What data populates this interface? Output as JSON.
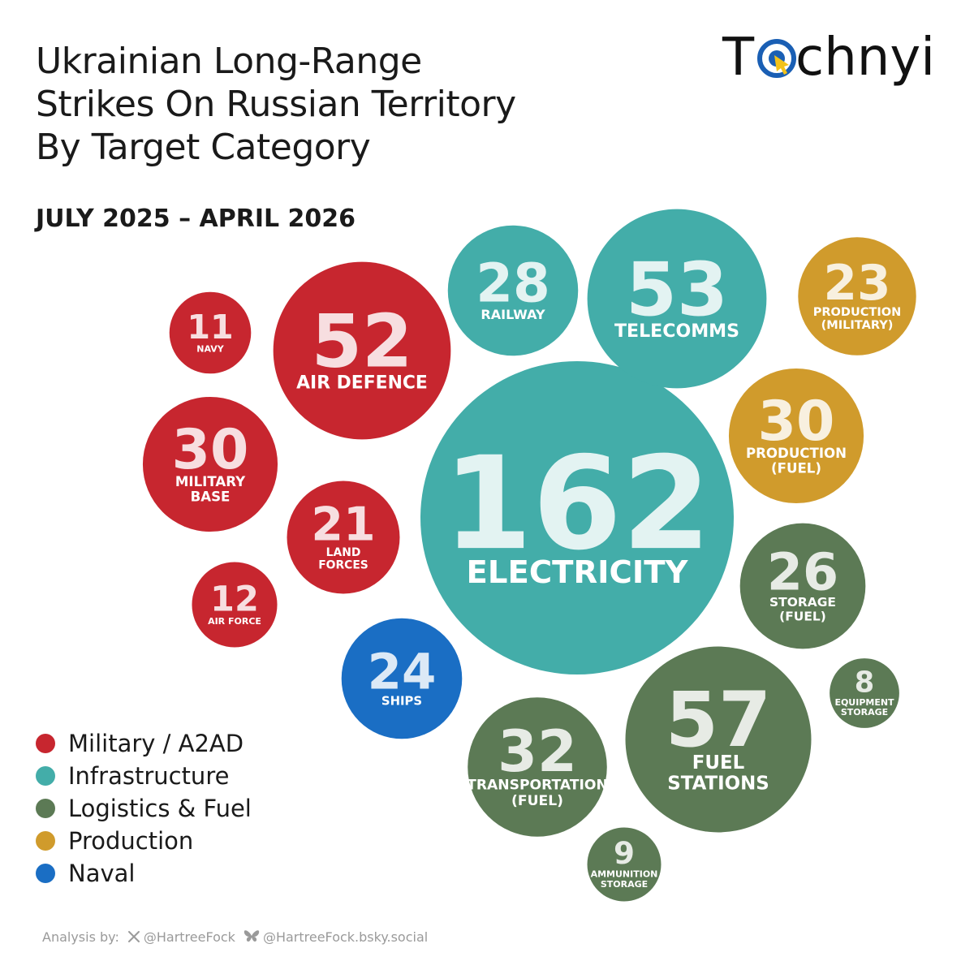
{
  "title_lines": [
    "Ukrainian Long-Range",
    "Strikes On Russian Territory",
    "By Target Category"
  ],
  "subtitle": "JULY 2025 – APRIL 2026",
  "logo": {
    "text": "Technyi",
    "icon": "target-e-logo-icon"
  },
  "chart_data": {
    "type": "bubble",
    "title": "Ukrainian Long-Range Strikes On Russian Territory By Target Category",
    "subtitle": "JULY 2025 – APRIL 2026",
    "series": [
      {
        "name": "Military / A2AD",
        "color": "#c7262f"
      },
      {
        "name": "Infrastructure",
        "color": "#43ada9"
      },
      {
        "name": "Logistics & Fuel",
        "color": "#5c7a55"
      },
      {
        "name": "Production",
        "color": "#d09b2c"
      },
      {
        "name": "Naval",
        "color": "#1a6ec4"
      }
    ],
    "points": [
      {
        "value": 162,
        "label": [
          "ELECTRICITY"
        ],
        "series": "Infrastructure"
      },
      {
        "value": 53,
        "label": [
          "TELECOMMS"
        ],
        "series": "Infrastructure"
      },
      {
        "value": 28,
        "label": [
          "RAILWAY"
        ],
        "series": "Infrastructure"
      },
      {
        "value": 23,
        "label": [
          "PRODUCTION",
          "(MILITARY)"
        ],
        "series": "Production"
      },
      {
        "value": 30,
        "label": [
          "PRODUCTION",
          "(FUEL)"
        ],
        "series": "Production"
      },
      {
        "value": 11,
        "label": [
          "NAVY"
        ],
        "series": "Military / A2AD"
      },
      {
        "value": 52,
        "label": [
          "AIR DEFENCE"
        ],
        "series": "Military / A2AD"
      },
      {
        "value": 30,
        "label": [
          "MILITARY",
          "BASE"
        ],
        "series": "Military / A2AD"
      },
      {
        "value": 21,
        "label": [
          "LAND",
          "FORCES"
        ],
        "series": "Military / A2AD"
      },
      {
        "value": 12,
        "label": [
          "AIR FORCE"
        ],
        "series": "Military / A2AD"
      },
      {
        "value": 24,
        "label": [
          "SHIPS"
        ],
        "series": "Naval"
      },
      {
        "value": 26,
        "label": [
          "STORAGE",
          "(FUEL)"
        ],
        "series": "Logistics & Fuel"
      },
      {
        "value": 8,
        "label": [
          "EQUIPMENT",
          "STORAGE"
        ],
        "series": "Logistics & Fuel"
      },
      {
        "value": 57,
        "label": [
          "FUEL",
          "STATIONS"
        ],
        "series": "Logistics & Fuel"
      },
      {
        "value": 32,
        "label": [
          "TRANSPORTATION",
          "(FUEL)"
        ],
        "series": "Logistics & Fuel"
      },
      {
        "value": 9,
        "label": [
          "AMMUNITION",
          "STORAGE"
        ],
        "series": "Logistics & Fuel"
      }
    ],
    "legend": "bottom-left"
  },
  "footer": {
    "prefix": "Analysis by:",
    "x_handle": "@HartreeFock",
    "bsky_handle": "@HartreeFock.bsky.social"
  }
}
